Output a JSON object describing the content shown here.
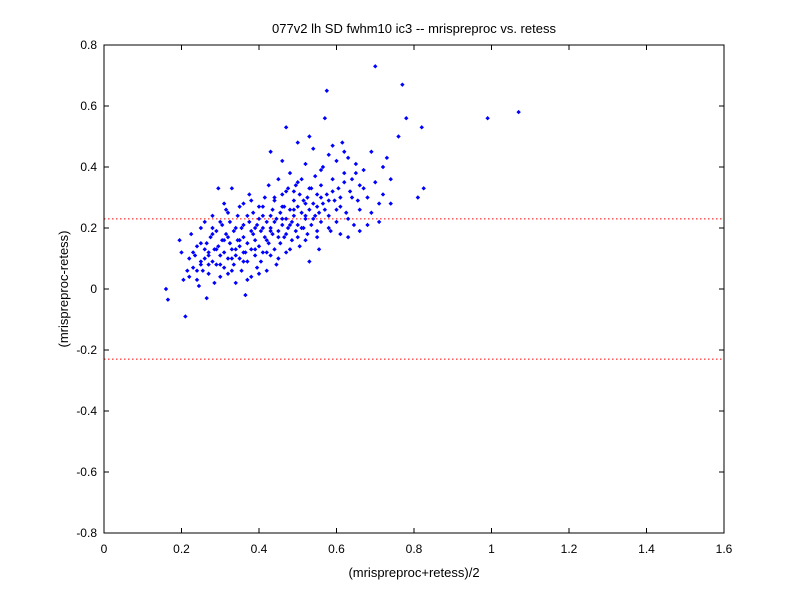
{
  "chart_data": {
    "type": "scatter",
    "title": "077v2 lh SD fwhm10 ic3 -- mrispreproc vs. retess",
    "xlabel": "(mrispreproc+retess)/2",
    "ylabel": "(mrispreproc-retess)",
    "xlim": [
      0,
      1.6
    ],
    "ylim": [
      -0.8,
      0.8
    ],
    "x_ticks": [
      "0",
      "0.2",
      "0.4",
      "0.6",
      "0.8",
      "1",
      "1.2",
      "1.4",
      "1.6"
    ],
    "y_ticks": [
      "0.8",
      "0.6",
      "0.4",
      "0.2",
      "0",
      "-0.2",
      "-0.4",
      "-0.6",
      "-0.8"
    ],
    "grid": false,
    "marker_color": "#0000ff",
    "reference_lines": [
      {
        "y": 0.23,
        "style": "dotted",
        "color": "#ff0000"
      },
      {
        "y": -0.23,
        "style": "dotted",
        "color": "#ff0000"
      }
    ],
    "points": [
      [
        0.16,
        0.0
      ],
      [
        0.165,
        -0.035
      ],
      [
        0.195,
        0.16
      ],
      [
        0.2,
        0.12
      ],
      [
        0.205,
        0.03
      ],
      [
        0.21,
        -0.09
      ],
      [
        0.215,
        0.06
      ],
      [
        0.22,
        0.1
      ],
      [
        0.225,
        0.18
      ],
      [
        0.23,
        0.07
      ],
      [
        0.235,
        0.11
      ],
      [
        0.24,
        0.03
      ],
      [
        0.24,
        0.14
      ],
      [
        0.245,
        0.01
      ],
      [
        0.25,
        0.09
      ],
      [
        0.25,
        0.2
      ],
      [
        0.255,
        0.06
      ],
      [
        0.26,
        0.13
      ],
      [
        0.26,
        0.22
      ],
      [
        0.265,
        -0.03
      ],
      [
        0.265,
        0.15
      ],
      [
        0.27,
        0.11
      ],
      [
        0.27,
        0.05
      ],
      [
        0.275,
        0.17
      ],
      [
        0.28,
        0.09
      ],
      [
        0.28,
        0.24
      ],
      [
        0.285,
        0.13
      ],
      [
        0.285,
        0.02
      ],
      [
        0.29,
        0.19
      ],
      [
        0.29,
        0.08
      ],
      [
        0.295,
        0.14
      ],
      [
        0.295,
        0.33
      ],
      [
        0.3,
        0.11
      ],
      [
        0.3,
        0.04
      ],
      [
        0.305,
        0.21
      ],
      [
        0.305,
        0.16
      ],
      [
        0.31,
        0.07
      ],
      [
        0.31,
        0.12
      ],
      [
        0.315,
        0.26
      ],
      [
        0.315,
        0.18
      ],
      [
        0.32,
        0.1
      ],
      [
        0.32,
        0.05
      ],
      [
        0.325,
        0.15
      ],
      [
        0.325,
        0.22
      ],
      [
        0.33,
        0.13
      ],
      [
        0.33,
        0.33
      ],
      [
        0.335,
        0.08
      ],
      [
        0.335,
        0.19
      ],
      [
        0.34,
        0.11
      ],
      [
        0.34,
        0.02
      ],
      [
        0.345,
        0.16
      ],
      [
        0.345,
        0.24
      ],
      [
        0.35,
        0.1
      ],
      [
        0.35,
        0.14
      ],
      [
        0.355,
        0.2
      ],
      [
        0.355,
        0.06
      ],
      [
        0.36,
        0.17
      ],
      [
        0.36,
        0.28
      ],
      [
        0.365,
        0.12
      ],
      [
        0.365,
        -0.02
      ],
      [
        0.37,
        0.15
      ],
      [
        0.37,
        0.09
      ],
      [
        0.375,
        0.22
      ],
      [
        0.375,
        0.31
      ],
      [
        0.38,
        0.13
      ],
      [
        0.38,
        0.04
      ],
      [
        0.385,
        0.18
      ],
      [
        0.385,
        0.25
      ],
      [
        0.39,
        0.11
      ],
      [
        0.39,
        0.16
      ],
      [
        0.395,
        0.21
      ],
      [
        0.395,
        0.07
      ],
      [
        0.4,
        0.27
      ],
      [
        0.4,
        0.14
      ],
      [
        0.405,
        0.19
      ],
      [
        0.405,
        0.09
      ],
      [
        0.41,
        0.24
      ],
      [
        0.41,
        0.12
      ],
      [
        0.415,
        0.3
      ],
      [
        0.415,
        0.17
      ],
      [
        0.42,
        0.22
      ],
      [
        0.42,
        0.06
      ],
      [
        0.425,
        0.15
      ],
      [
        0.425,
        0.34
      ],
      [
        0.43,
        0.2
      ],
      [
        0.43,
        0.11
      ],
      [
        0.435,
        0.26
      ],
      [
        0.435,
        0.18
      ],
      [
        0.44,
        0.13
      ],
      [
        0.44,
        0.29
      ],
      [
        0.445,
        0.23
      ],
      [
        0.445,
        0.08
      ],
      [
        0.45,
        0.19
      ],
      [
        0.45,
        0.36
      ],
      [
        0.455,
        0.25
      ],
      [
        0.455,
        0.15
      ],
      [
        0.46,
        0.21
      ],
      [
        0.46,
        0.31
      ],
      [
        0.465,
        0.17
      ],
      [
        0.465,
        0.27
      ],
      [
        0.47,
        0.23
      ],
      [
        0.47,
        0.12
      ],
      [
        0.475,
        0.33
      ],
      [
        0.475,
        0.2
      ],
      [
        0.48,
        0.26
      ],
      [
        0.48,
        0.38
      ],
      [
        0.485,
        0.22
      ],
      [
        0.485,
        0.16
      ],
      [
        0.49,
        0.29
      ],
      [
        0.49,
        0.24
      ],
      [
        0.495,
        0.19
      ],
      [
        0.495,
        0.34
      ],
      [
        0.5,
        0.27
      ],
      [
        0.5,
        0.21
      ],
      [
        0.505,
        0.31
      ],
      [
        0.505,
        0.14
      ],
      [
        0.51,
        0.25
      ],
      [
        0.51,
        0.36
      ],
      [
        0.515,
        0.2
      ],
      [
        0.515,
        0.29
      ],
      [
        0.52,
        0.23
      ],
      [
        0.52,
        0.41
      ],
      [
        0.525,
        0.18
      ],
      [
        0.525,
        0.3
      ],
      [
        0.53,
        0.26
      ],
      [
        0.53,
        0.09
      ],
      [
        0.535,
        0.33
      ],
      [
        0.535,
        0.21
      ],
      [
        0.54,
        0.28
      ],
      [
        0.54,
        0.46
      ],
      [
        0.545,
        0.24
      ],
      [
        0.545,
        0.37
      ],
      [
        0.55,
        0.19
      ],
      [
        0.55,
        0.31
      ],
      [
        0.555,
        0.25
      ],
      [
        0.555,
        0.13
      ],
      [
        0.56,
        0.34
      ],
      [
        0.56,
        0.22
      ],
      [
        0.565,
        0.4
      ],
      [
        0.565,
        0.28
      ],
      [
        0.57,
        0.56
      ],
      [
        0.575,
        0.65
      ],
      [
        0.575,
        0.31
      ],
      [
        0.58,
        0.24
      ],
      [
        0.58,
        0.44
      ],
      [
        0.585,
        0.19
      ],
      [
        0.59,
        0.36
      ],
      [
        0.595,
        0.29
      ],
      [
        0.6,
        0.22
      ],
      [
        0.6,
        0.42
      ],
      [
        0.605,
        0.33
      ],
      [
        0.61,
        0.27
      ],
      [
        0.615,
        0.48
      ],
      [
        0.62,
        0.38
      ],
      [
        0.625,
        0.25
      ],
      [
        0.63,
        0.43
      ],
      [
        0.635,
        0.32
      ],
      [
        0.64,
        0.36
      ],
      [
        0.645,
        0.21
      ],
      [
        0.65,
        0.41
      ],
      [
        0.655,
        0.29
      ],
      [
        0.66,
        0.34
      ],
      [
        0.67,
        0.39
      ],
      [
        0.68,
        0.3
      ],
      [
        0.69,
        0.45
      ],
      [
        0.7,
        0.73
      ],
      [
        0.7,
        0.35
      ],
      [
        0.71,
        0.28
      ],
      [
        0.72,
        0.4
      ],
      [
        0.73,
        0.43
      ],
      [
        0.74,
        0.36
      ],
      [
        0.76,
        0.5
      ],
      [
        0.77,
        0.67
      ],
      [
        0.78,
        0.56
      ],
      [
        0.81,
        0.3
      ],
      [
        0.82,
        0.53
      ],
      [
        0.825,
        0.33
      ],
      [
        0.99,
        0.56
      ],
      [
        1.07,
        0.58
      ],
      [
        0.47,
        0.53
      ],
      [
        0.5,
        0.48
      ],
      [
        0.53,
        0.5
      ],
      [
        0.43,
        0.45
      ],
      [
        0.46,
        0.42
      ],
      [
        0.56,
        0.39
      ],
      [
        0.59,
        0.47
      ],
      [
        0.62,
        0.45
      ],
      [
        0.64,
        0.3
      ],
      [
        0.66,
        0.26
      ],
      [
        0.68,
        0.21
      ],
      [
        0.31,
        0.28
      ],
      [
        0.28,
        0.18
      ],
      [
        0.26,
        0.1
      ],
      [
        0.33,
        0.06
      ],
      [
        0.37,
        0.03
      ],
      [
        0.4,
        0.05
      ],
      [
        0.42,
        0.12
      ],
      [
        0.45,
        0.1
      ],
      [
        0.48,
        0.13
      ],
      [
        0.52,
        0.16
      ],
      [
        0.55,
        0.17
      ],
      [
        0.58,
        0.2
      ],
      [
        0.61,
        0.18
      ],
      [
        0.63,
        0.17
      ],
      [
        0.36,
        0.21
      ],
      [
        0.38,
        0.19
      ],
      [
        0.41,
        0.2
      ],
      [
        0.44,
        0.22
      ],
      [
        0.47,
        0.18
      ],
      [
        0.5,
        0.17
      ],
      [
        0.52,
        0.28
      ],
      [
        0.49,
        0.32
      ],
      [
        0.46,
        0.27
      ],
      [
        0.43,
        0.24
      ],
      [
        0.4,
        0.23
      ],
      [
        0.37,
        0.24
      ],
      [
        0.34,
        0.2
      ],
      [
        0.31,
        0.16
      ],
      [
        0.29,
        0.13
      ],
      [
        0.27,
        0.08
      ],
      [
        0.24,
        0.06
      ],
      [
        0.22,
        0.04
      ],
      [
        0.23,
        0.12
      ],
      [
        0.25,
        0.15
      ],
      [
        0.28,
        0.2
      ],
      [
        0.3,
        0.22
      ],
      [
        0.32,
        0.25
      ],
      [
        0.35,
        0.27
      ],
      [
        0.38,
        0.29
      ],
      [
        0.41,
        0.27
      ],
      [
        0.44,
        0.3
      ],
      [
        0.47,
        0.32
      ],
      [
        0.5,
        0.35
      ],
      [
        0.53,
        0.33
      ],
      [
        0.56,
        0.3
      ],
      [
        0.59,
        0.32
      ],
      [
        0.62,
        0.35
      ],
      [
        0.65,
        0.38
      ],
      [
        0.67,
        0.33
      ],
      [
        0.69,
        0.25
      ],
      [
        0.72,
        0.31
      ],
      [
        0.74,
        0.28
      ],
      [
        0.71,
        0.22
      ],
      [
        0.66,
        0.19
      ],
      [
        0.63,
        0.23
      ],
      [
        0.6,
        0.26
      ],
      [
        0.57,
        0.26
      ],
      [
        0.54,
        0.23
      ],
      [
        0.51,
        0.2
      ],
      [
        0.48,
        0.21
      ],
      [
        0.45,
        0.17
      ],
      [
        0.42,
        0.16
      ],
      [
        0.39,
        0.13
      ],
      [
        0.36,
        0.12
      ],
      [
        0.33,
        0.1
      ],
      [
        0.3,
        0.08
      ],
      [
        0.27,
        0.12
      ],
      [
        0.25,
        0.08
      ],
      [
        0.35,
        0.16
      ],
      [
        0.39,
        0.2
      ],
      [
        0.43,
        0.19
      ],
      [
        0.46,
        0.23
      ],
      [
        0.49,
        0.26
      ],
      [
        0.52,
        0.24
      ],
      [
        0.55,
        0.27
      ],
      [
        0.58,
        0.29
      ],
      [
        0.61,
        0.3
      ],
      [
        0.34,
        0.13
      ],
      [
        0.32,
        0.17
      ],
      [
        0.36,
        0.09
      ]
    ]
  }
}
